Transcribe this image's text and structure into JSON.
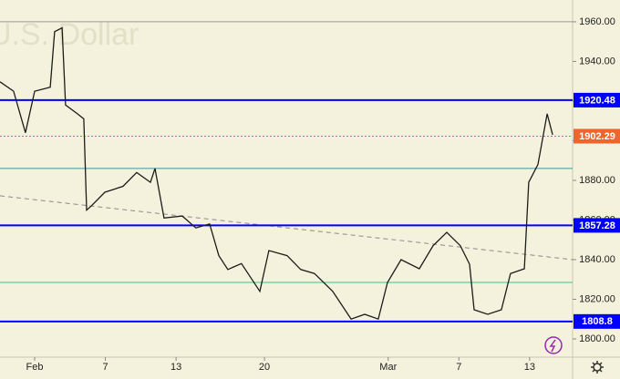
{
  "chart_data": {
    "type": "line",
    "watermark": "U.S. Dollar",
    "x": [
      -1.96,
      -1.19,
      -0.52,
      0,
      0.88,
      1.13,
      1.55,
      1.75,
      2.42,
      2.78,
      2.94,
      3.2,
      3.97,
      5.0,
      5.77,
      6.55,
      6.81,
      7.32,
      8.35,
      9.12,
      9.9,
      10.42,
      10.93,
      11.7,
      12.74,
      13.25,
      14.28,
      15.05,
      15.83,
      16.86,
      17.9,
      18.67,
      19.44,
      19.96,
      20.73,
      21.76,
      22.54,
      23.31,
      24.08,
      24.6,
      24.86,
      25.63,
      26.4,
      26.92,
      27.7,
      27.95,
      28.47,
      28.99,
      29.3
    ],
    "values": [
      1929.7,
      1925,
      1904,
      1925,
      1927,
      1955,
      1957,
      1918,
      1913.6,
      1911,
      1865,
      1867,
      1874,
      1877,
      1884,
      1879,
      1886,
      1861,
      1862,
      1856,
      1858,
      1842,
      1835,
      1838,
      1824,
      1844.6,
      1842,
      1835,
      1833,
      1824,
      1810,
      1812.4,
      1810,
      1828.5,
      1840,
      1835.4,
      1847,
      1853.8,
      1847,
      1837.7,
      1814.7,
      1812.4,
      1814.7,
      1833,
      1835.4,
      1879,
      1888,
      1913.6,
      1903
    ],
    "color": "#1c1c1c",
    "xlim": [
      -1.96,
      30.43
    ],
    "xticks": [
      {
        "value": 0,
        "label": "Feb"
      },
      {
        "value": 4,
        "label": "7"
      },
      {
        "value": 8,
        "label": "13"
      },
      {
        "value": 13,
        "label": "20"
      },
      {
        "value": 20,
        "label": "Mar"
      },
      {
        "value": 24,
        "label": "7"
      },
      {
        "value": 28,
        "label": "13"
      }
    ],
    "ylim": [
      1790.8,
      1971
    ],
    "yticks": [
      {
        "value": 1800,
        "label": "1800.00"
      },
      {
        "value": 1820,
        "label": "1820.00"
      },
      {
        "value": 1840,
        "label": "1840.00"
      },
      {
        "value": 1860,
        "label": "1860.00"
      },
      {
        "value": 1880,
        "label": "1880.00"
      },
      {
        "value": 1900,
        "label": "1900.00"
      },
      {
        "value": 1920,
        "label": "1920.00"
      },
      {
        "value": 1940,
        "label": "1940.00"
      },
      {
        "value": 1960,
        "label": "1960.00"
      }
    ],
    "levels": [
      {
        "value": 1960,
        "color": "#9a9a9a",
        "width": 1,
        "labeled": false
      },
      {
        "value": 1920.48,
        "color": "#0000ff",
        "width": 2,
        "labeled": true
      },
      {
        "value": 1902.29,
        "color": "#f0642d",
        "width": 1,
        "dashed": true,
        "labeled": true
      },
      {
        "value": 1886,
        "color": "#3a9a9a",
        "width": 1,
        "labeled": false
      },
      {
        "value": 1857.28,
        "color": "#0000ff",
        "width": 2,
        "labeled": true
      },
      {
        "value": 1828.5,
        "color": "#3cc48a",
        "width": 1,
        "labeled": false
      },
      {
        "value": 1808.8,
        "color": "#0000ff",
        "width": 2,
        "labeled": true
      }
    ],
    "trendline": {
      "x": [
        -1.96,
        30.43
      ],
      "values": [
        1872.2,
        1840.0
      ],
      "color": "#8a8a8a"
    }
  }
}
